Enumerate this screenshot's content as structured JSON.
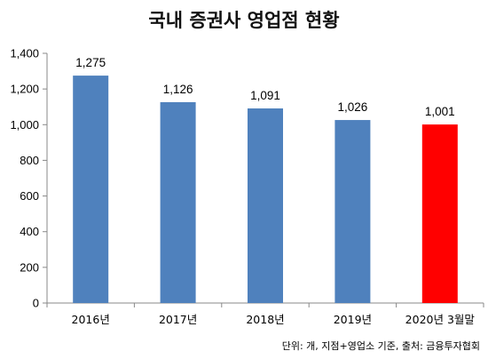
{
  "chart_data": {
    "type": "bar",
    "title": "국내 증권사 영업점 현황",
    "categories": [
      "2016년",
      "2017년",
      "2018년",
      "2019년",
      "2020년 3월말"
    ],
    "values": [
      1275,
      1126,
      1091,
      1026,
      1001
    ],
    "value_labels": [
      "1,275",
      "1,126",
      "1,091",
      "1,026",
      "1,001"
    ],
    "ylim": [
      0,
      1400
    ],
    "yticks": [
      0,
      200,
      400,
      600,
      800,
      1000,
      1200,
      1400
    ],
    "ytick_labels": [
      "0",
      "200",
      "400",
      "600",
      "800",
      "1,000",
      "1,200",
      "1,400"
    ],
    "grid": false,
    "legend": "none",
    "bar_colors": [
      "#4f81bd",
      "#4f81bd",
      "#4f81bd",
      "#4f81bd",
      "#ff0000"
    ],
    "note": "단위: 개, 지점+영업소 기준, 출처: 금융투자협회"
  }
}
